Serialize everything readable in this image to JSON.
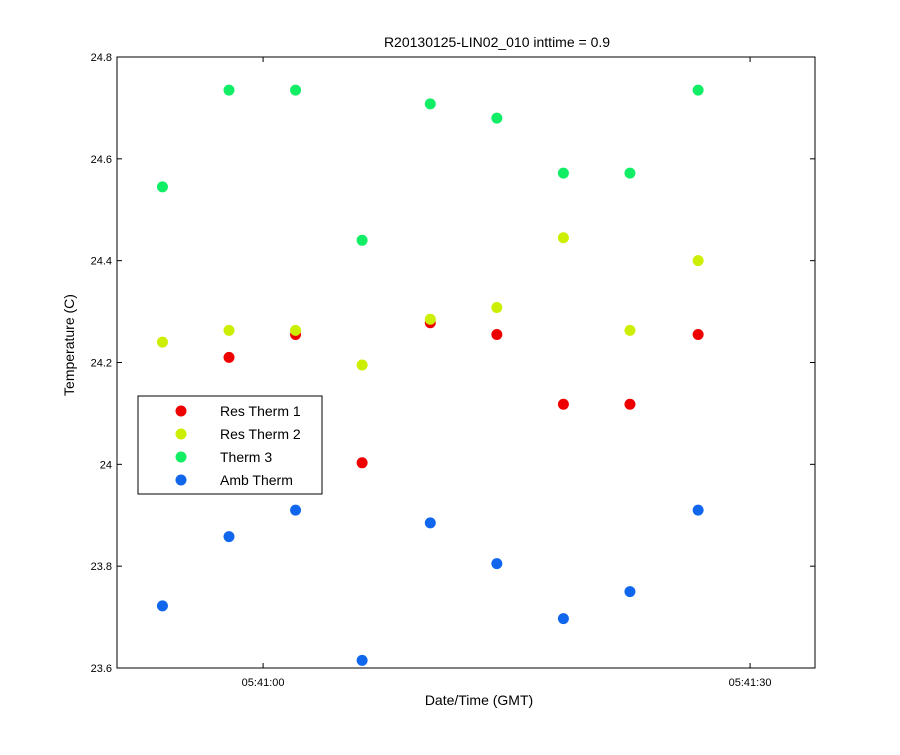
{
  "chart_data": {
    "type": "scatter",
    "title": "R20130125-LIN02_010 inttime = 0.9",
    "xlabel": "Date/Time (GMT)",
    "ylabel": "Temperature (C)",
    "x_unit": "time (GMT)",
    "xlim": [
      "05:40:51",
      "05:41:34"
    ],
    "ylim": [
      23.6,
      24.8
    ],
    "x_ticks": [
      {
        "value": "05:41:00",
        "label": "05:41:00"
      },
      {
        "value": "05:41:30",
        "label": "05:41:30"
      }
    ],
    "y_ticks": [
      {
        "value": 23.6,
        "label": "23.6"
      },
      {
        "value": 23.8,
        "label": "23.8"
      },
      {
        "value": 24.0,
        "label": "24"
      },
      {
        "value": 24.2,
        "label": "24.2"
      },
      {
        "value": 24.4,
        "label": "24.4"
      },
      {
        "value": 24.6,
        "label": "24.6"
      },
      {
        "value": 24.8,
        "label": "24.8"
      }
    ],
    "grid": false,
    "legend_position": "center-left",
    "series": [
      {
        "name": "Res Therm 1",
        "color": "#ee0000",
        "points": [
          {
            "x": "05:40:57.9",
            "y": 24.21
          },
          {
            "x": "05:41:02.0",
            "y": 24.255
          },
          {
            "x": "05:41:06.1",
            "y": 24.003
          },
          {
            "x": "05:41:10.3",
            "y": 24.278
          },
          {
            "x": "05:41:14.4",
            "y": 24.255
          },
          {
            "x": "05:41:18.5",
            "y": 24.118
          },
          {
            "x": "05:41:22.6",
            "y": 24.118
          },
          {
            "x": "05:41:26.8",
            "y": 24.255
          }
        ]
      },
      {
        "name": "Res Therm 2",
        "color": "#ccee00",
        "points": [
          {
            "x": "05:40:53.8",
            "y": 24.24
          },
          {
            "x": "05:40:57.9",
            "y": 24.263
          },
          {
            "x": "05:41:02.0",
            "y": 24.263
          },
          {
            "x": "05:41:06.1",
            "y": 24.195
          },
          {
            "x": "05:41:10.3",
            "y": 24.285
          },
          {
            "x": "05:41:14.4",
            "y": 24.308
          },
          {
            "x": "05:41:18.5",
            "y": 24.445
          },
          {
            "x": "05:41:22.6",
            "y": 24.263
          },
          {
            "x": "05:41:26.8",
            "y": 24.4
          }
        ]
      },
      {
        "name": "Therm 3",
        "color": "#11ee66",
        "points": [
          {
            "x": "05:40:53.8",
            "y": 24.545
          },
          {
            "x": "05:40:57.9",
            "y": 24.735
          },
          {
            "x": "05:41:02.0",
            "y": 24.735
          },
          {
            "x": "05:41:06.1",
            "y": 24.44
          },
          {
            "x": "05:41:10.3",
            "y": 24.708
          },
          {
            "x": "05:41:14.4",
            "y": 24.68
          },
          {
            "x": "05:41:18.5",
            "y": 24.572
          },
          {
            "x": "05:41:22.6",
            "y": 24.572
          },
          {
            "x": "05:41:26.8",
            "y": 24.735
          }
        ]
      },
      {
        "name": "Amb Therm",
        "color": "#1166ee",
        "points": [
          {
            "x": "05:40:53.8",
            "y": 23.722
          },
          {
            "x": "05:40:57.9",
            "y": 23.858
          },
          {
            "x": "05:41:02.0",
            "y": 23.91
          },
          {
            "x": "05:41:06.1",
            "y": 23.615
          },
          {
            "x": "05:41:10.3",
            "y": 23.885
          },
          {
            "x": "05:41:14.4",
            "y": 23.805
          },
          {
            "x": "05:41:18.5",
            "y": 23.697
          },
          {
            "x": "05:41:22.6",
            "y": 23.75
          },
          {
            "x": "05:41:26.8",
            "y": 23.91
          }
        ]
      }
    ]
  }
}
